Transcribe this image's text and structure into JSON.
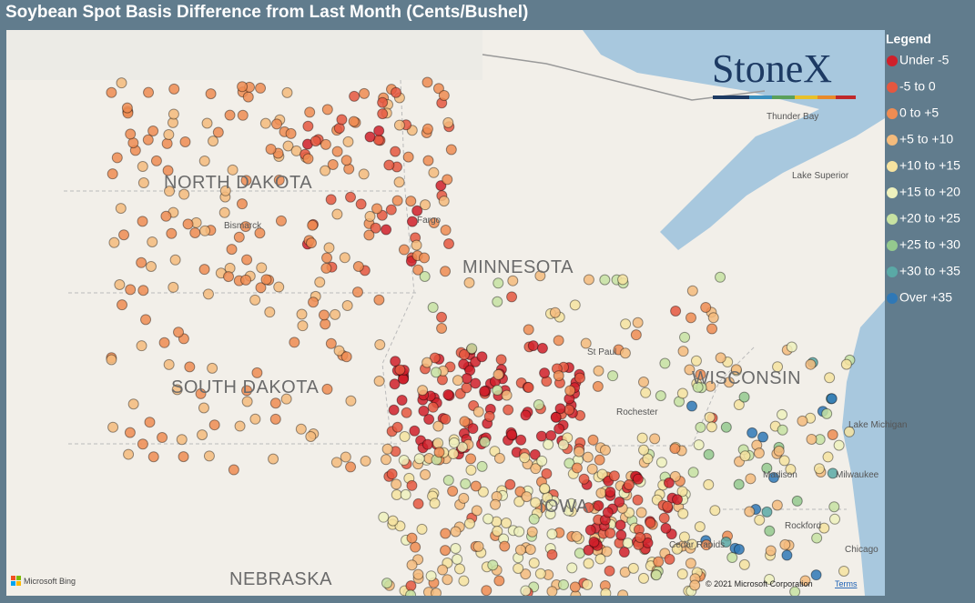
{
  "title": "Soybean Spot Basis Difference from Last Month (Cents/Bushel)",
  "legend": {
    "title": "Legend",
    "items": [
      {
        "label": "Under -5",
        "color": "#d0202a"
      },
      {
        "label": "-5 to 0",
        "color": "#e5573f"
      },
      {
        "label": "0 to +5",
        "color": "#ef8c52"
      },
      {
        "label": "+5 to +10",
        "color": "#f4bb7c"
      },
      {
        "label": "+10 to +15",
        "color": "#f6e3a0"
      },
      {
        "label": "+15 to +20",
        "color": "#eef1bd"
      },
      {
        "label": "+20 to +25",
        "color": "#c7e2a2"
      },
      {
        "label": "+25 to +30",
        "color": "#94c98e"
      },
      {
        "label": "+30 to +35",
        "color": "#5aa9a6"
      },
      {
        "label": "Over +35",
        "color": "#2f78b6"
      }
    ]
  },
  "logo": "StoneX",
  "map": {
    "states": [
      "NORTH DAKOTA",
      "SOUTH DAKOTA",
      "MINNESOTA",
      "WISCONSIN",
      "IOWA",
      "NEBRASKA"
    ],
    "places": [
      "Bismarck",
      "Fargo",
      "St Paul",
      "Rochester",
      "Thunder Bay",
      "Lake Superior",
      "Lake Michigan",
      "Madison",
      "Milwaukee",
      "Rockford",
      "Cedar Rapids",
      "Chicago"
    ]
  },
  "attribution": {
    "provider": "Microsoft Bing",
    "copyright": "© 2021 Microsoft Corporation",
    "terms": "Terms"
  }
}
